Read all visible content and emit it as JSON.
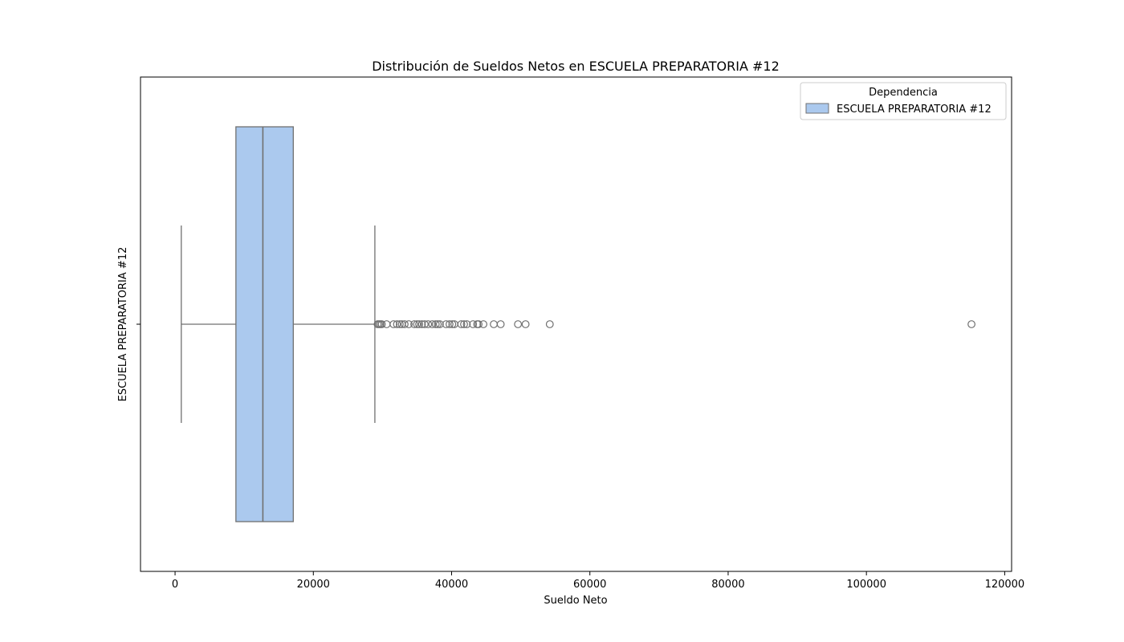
{
  "chart_data": {
    "type": "boxplot",
    "orientation": "horizontal",
    "title": "Distribución de Sueldos Netos en ESCUELA PREPARATORIA #12",
    "xlabel": "Sueldo Neto",
    "ylabel": "ESCUELA PREPARATORIA #12",
    "xlim": [
      -5000,
      121000
    ],
    "xticks": [
      0,
      20000,
      40000,
      60000,
      80000,
      100000,
      120000
    ],
    "xtick_labels": [
      "0",
      "20000",
      "40000",
      "60000",
      "80000",
      "100000",
      "120000"
    ],
    "grid": false,
    "legend": {
      "title": "Dependencia",
      "placement": "top-right",
      "entries": [
        "ESCUELA PREPARATORIA #12"
      ]
    },
    "series": [
      {
        "name": "ESCUELA PREPARATORIA #12",
        "color": "#abc9ee",
        "edge_color": "#707070",
        "whisker_low": 900,
        "q1": 8800,
        "median": 12700,
        "q3": 17100,
        "whisker_high": 28900,
        "outliers": [
          29300,
          29500,
          29700,
          29900,
          30600,
          31600,
          32100,
          32500,
          32800,
          33200,
          33800,
          34600,
          35000,
          35300,
          35700,
          36100,
          36600,
          37200,
          37700,
          38000,
          38300,
          39200,
          39700,
          40100,
          40400,
          41400,
          41800,
          42200,
          43100,
          43700,
          43900,
          44600,
          46100,
          47100,
          49600,
          50700,
          54200,
          115200
        ]
      }
    ]
  }
}
